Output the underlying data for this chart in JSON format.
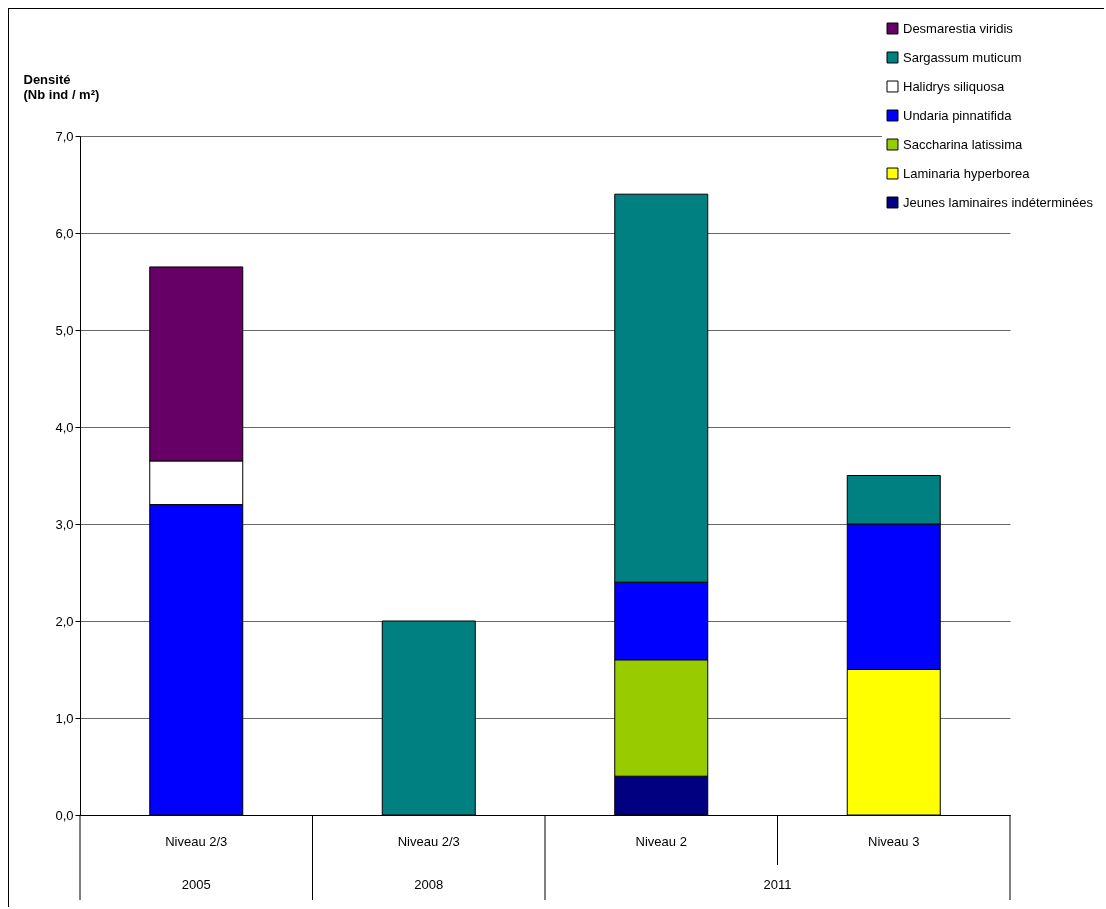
{
  "chart_data": {
    "type": "bar",
    "stacked": true,
    "ylabel": "Densité\n(Nb ind / m²)",
    "categories": [
      "Niveau 2/3",
      "Niveau 2/3",
      "Niveau 2",
      "Niveau 3"
    ],
    "annotations": [
      "2005",
      "2008",
      "2011"
    ],
    "ylim": [
      0,
      7
    ],
    "yticks": [
      {
        "value": 0,
        "label": "0,0"
      },
      {
        "value": 1,
        "label": "1,0"
      },
      {
        "value": 2,
        "label": "2,0"
      },
      {
        "value": 3,
        "label": "3,0"
      },
      {
        "value": 4,
        "label": "4,0"
      },
      {
        "value": 5,
        "label": "5,0"
      },
      {
        "value": 6,
        "label": "6,0"
      },
      {
        "value": 7,
        "label": "7,0"
      }
    ],
    "grid": "y",
    "legend": "top right",
    "series": [
      {
        "name": "Jeunes laminaires indéterminées",
        "color": "#000080",
        "values": [
          null,
          null,
          0.4,
          null
        ]
      },
      {
        "name": "Laminaria hyperborea",
        "color": "#ffff00",
        "values": [
          null,
          null,
          null,
          1.5
        ]
      },
      {
        "name": "Saccharina latissima",
        "color": "#99cc00",
        "values": [
          null,
          null,
          1.2,
          null
        ]
      },
      {
        "name": "Undaria pinnatifida",
        "color": "#0000ff",
        "values": [
          3.2,
          null,
          0.8,
          1.5
        ]
      },
      {
        "name": "Halidrys siliquosa",
        "color": "#ffffff",
        "values": [
          0.45,
          null,
          null,
          null
        ]
      },
      {
        "name": "Sargassum muticum",
        "color": "#008080",
        "values": [
          null,
          2.0,
          4.0,
          0.5
        ]
      },
      {
        "name": "Desmarestia viridis",
        "color": "#660066",
        "values": [
          2.0,
          null,
          null,
          null
        ]
      }
    ]
  }
}
